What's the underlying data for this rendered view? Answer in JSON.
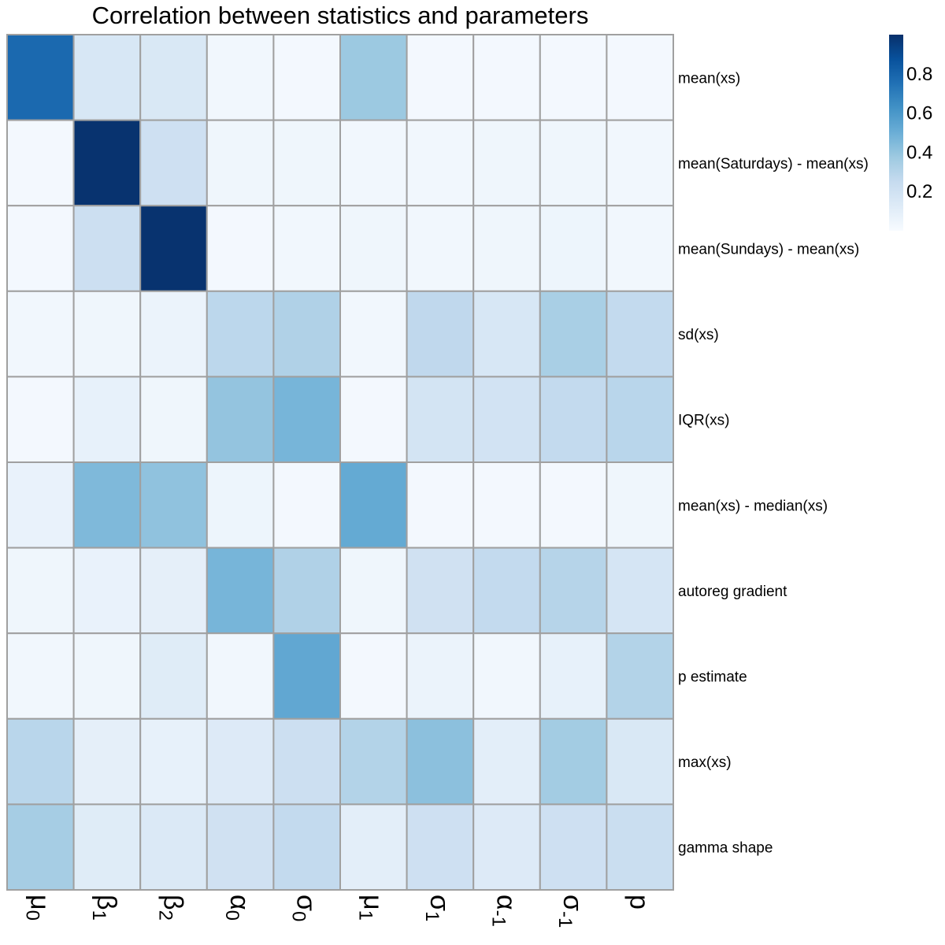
{
  "chart_data": {
    "type": "heatmap",
    "title": "Correlation between statistics and parameters",
    "rows": [
      "mean(xs)",
      "mean(Saturdays) - mean(xs)",
      "mean(Sundays) - mean(xs)",
      "sd(xs)",
      "IQR(xs)",
      "mean(xs) - median(xs)",
      "autoreg gradient",
      "p estimate",
      "max(xs)",
      "gamma shape"
    ],
    "columns": [
      {
        "base": "μ",
        "sub": "0"
      },
      {
        "base": "β",
        "sub": "1"
      },
      {
        "base": "β",
        "sub": "2"
      },
      {
        "base": "α",
        "sub": "0"
      },
      {
        "base": "σ",
        "sub": "0"
      },
      {
        "base": "μ",
        "sub": "1"
      },
      {
        "base": "σ",
        "sub": "1"
      },
      {
        "base": "α",
        "sub": "-1"
      },
      {
        "base": "σ",
        "sub": "-1"
      },
      {
        "base": "p",
        "sub": ""
      }
    ],
    "values": [
      [
        0.78,
        0.16,
        0.15,
        0.03,
        0.02,
        0.38,
        0.02,
        0.02,
        0.02,
        0.02
      ],
      [
        0.02,
        0.99,
        0.21,
        0.04,
        0.04,
        0.03,
        0.03,
        0.04,
        0.04,
        0.03
      ],
      [
        0.02,
        0.22,
        0.99,
        0.02,
        0.03,
        0.04,
        0.03,
        0.04,
        0.05,
        0.03
      ],
      [
        0.03,
        0.04,
        0.06,
        0.28,
        0.32,
        0.03,
        0.27,
        0.16,
        0.34,
        0.26
      ],
      [
        0.02,
        0.08,
        0.04,
        0.4,
        0.47,
        0.02,
        0.18,
        0.19,
        0.26,
        0.29
      ],
      [
        0.07,
        0.45,
        0.41,
        0.05,
        0.02,
        0.52,
        0.02,
        0.02,
        0.02,
        0.04
      ],
      [
        0.04,
        0.07,
        0.09,
        0.47,
        0.32,
        0.04,
        0.2,
        0.26,
        0.3,
        0.17
      ],
      [
        0.03,
        0.04,
        0.12,
        0.03,
        0.53,
        0.02,
        0.06,
        0.03,
        0.08,
        0.31
      ],
      [
        0.29,
        0.09,
        0.08,
        0.13,
        0.22,
        0.31,
        0.42,
        0.1,
        0.36,
        0.15
      ],
      [
        0.35,
        0.12,
        0.14,
        0.2,
        0.26,
        0.1,
        0.21,
        0.13,
        0.21,
        0.23
      ]
    ],
    "colorbar": {
      "min": 0,
      "max": 1,
      "ticks": [
        0.2,
        0.4,
        0.6,
        0.8
      ],
      "tick_labels": [
        "0.2",
        "0.4",
        "0.6",
        "0.8"
      ],
      "colors": [
        "#f7fbff",
        "#deebf7",
        "#c6dbef",
        "#9ecae1",
        "#6baed6",
        "#4292c6",
        "#2171b5",
        "#08519c",
        "#08306b"
      ]
    },
    "xlabel": "",
    "ylabel": "",
    "grid": true,
    "legend_position": "top-right"
  }
}
